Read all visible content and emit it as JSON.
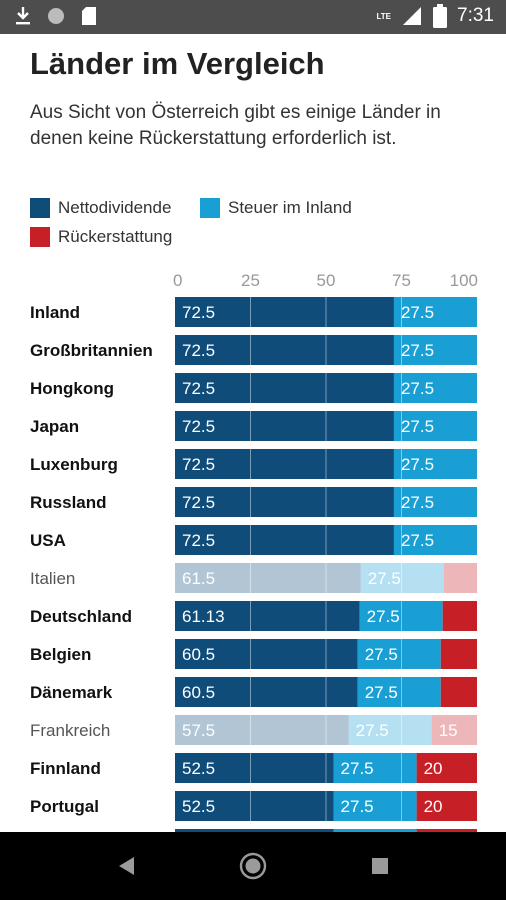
{
  "statusbar": {
    "time": "7:31",
    "network": "LTE",
    "icons": [
      "download-icon",
      "circle-icon",
      "sd-card-icon",
      "signal-icon",
      "battery-icon"
    ]
  },
  "header": {
    "title": "Länder im Vergleich",
    "subtitle": "Aus Sicht von Österreich gibt es einige Länder in denen keine Rückerstattung erforderlich ist."
  },
  "legend": [
    {
      "label": "Nettodividende",
      "color": "#0f4c7a"
    },
    {
      "label": "Steuer im Inland",
      "color": "#1a9fd4"
    },
    {
      "label": "Rückerstattung",
      "color": "#c62026"
    }
  ],
  "chart_data": {
    "type": "bar",
    "stacked": true,
    "orientation": "horizontal",
    "xlim": [
      0,
      100
    ],
    "xticks": [
      "0",
      "25",
      "50",
      "75",
      "100"
    ],
    "categories": [
      "Inland",
      "Großbritannien",
      "Hongkong",
      "Japan",
      "Luxenburg",
      "Russland",
      "USA",
      "Italien",
      "Deutschland",
      "Belgien",
      "Dänemark",
      "Frankreich",
      "Finnland",
      "Portugal"
    ],
    "highlighted": [
      true,
      true,
      true,
      true,
      true,
      true,
      true,
      false,
      true,
      true,
      true,
      false,
      true,
      true
    ],
    "series": [
      {
        "name": "Nettodividende",
        "color": "#0f4c7a",
        "values": [
          72.5,
          72.5,
          72.5,
          72.5,
          72.5,
          72.5,
          72.5,
          61.5,
          61.13,
          60.5,
          60.5,
          57.5,
          52.5,
          52.5
        ],
        "labels": [
          "72.5",
          "72.5",
          "72.5",
          "72.5",
          "72.5",
          "72.5",
          "72.5",
          "61.5",
          "61.13",
          "60.5",
          "60.5",
          "57.5",
          "52.5",
          "52.5"
        ]
      },
      {
        "name": "Steuer im Inland",
        "color": "#1a9fd4",
        "values": [
          27.5,
          27.5,
          27.5,
          27.5,
          27.5,
          27.5,
          27.5,
          27.5,
          27.5,
          27.5,
          27.5,
          27.5,
          27.5,
          27.5
        ],
        "labels": [
          "27.5",
          "27.5",
          "27.5",
          "27.5",
          "27.5",
          "27.5",
          "27.5",
          "27.5",
          "27.5",
          "27.5",
          "27.5",
          "27.5",
          "27.5",
          "27.5"
        ]
      },
      {
        "name": "Rückerstattung",
        "color": "#c62026",
        "values": [
          0,
          0,
          0,
          0,
          0,
          0,
          0,
          11,
          11.37,
          12,
          12,
          15,
          20,
          20
        ],
        "labels": [
          "",
          "",
          "",
          "",
          "",
          "",
          "",
          "",
          "",
          "",
          "",
          "15",
          "20",
          "20"
        ]
      }
    ]
  },
  "navbar": {
    "buttons": [
      "back-icon",
      "home-icon",
      "recents-icon"
    ]
  }
}
